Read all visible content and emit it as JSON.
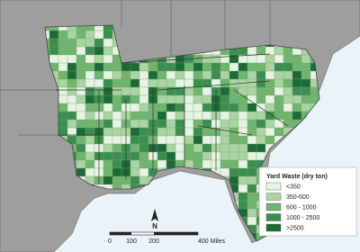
{
  "legend": {
    "title": "Yard Waste (dry ton)",
    "items": [
      {
        "label": "<350",
        "color": "#e6f4e2"
      },
      {
        "label": "350-600",
        "color": "#a8d5a0"
      },
      {
        "label": "600 - 1000",
        "color": "#6fb56e"
      },
      {
        "label": "1000 - 2500",
        "color": "#3a8f4e"
      },
      {
        "label": ">2500",
        "color": "#1b6b35"
      }
    ]
  },
  "scale_bar": {
    "labels": [
      "0",
      "100",
      "200",
      "400 Miles"
    ]
  },
  "north_arrow": {
    "label": "N"
  }
}
